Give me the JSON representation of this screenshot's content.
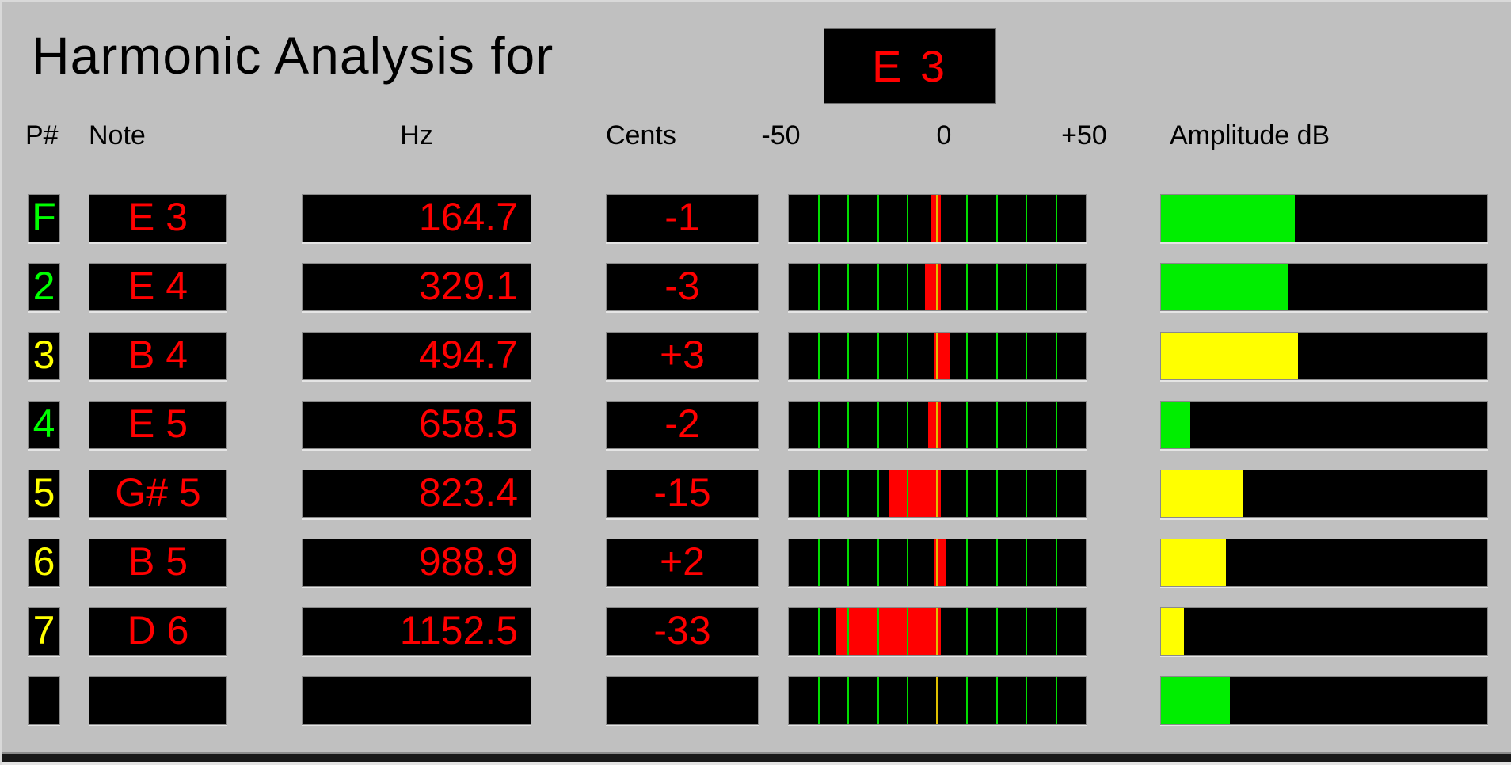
{
  "title": {
    "text": "Harmonic Analysis for",
    "current_note": "E 3"
  },
  "headers": {
    "partial_number": "P#",
    "note": "Note",
    "hz": "Hz",
    "cents": "Cents",
    "scale_min_label": "-50",
    "scale_zero_label": "0",
    "scale_max_label": "+50",
    "amplitude": "Amplitude dB"
  },
  "cents_scale": {
    "min": -50,
    "max": 50,
    "gridline_step": 10
  },
  "colors": {
    "background": "#c0c0c0",
    "box_black": "#000000",
    "value_red": "#ff0000",
    "pnum_green": "#00ff00",
    "pnum_yellow": "#ffff00",
    "gridline_green": "#00dd00",
    "zero_line_yellow": "#e0c000",
    "marker_red": "#ff0000",
    "amp_green": "#00ee00",
    "amp_yellow": "#ffff00"
  },
  "rows": [
    {
      "pnum": "F",
      "pnum_color": "green",
      "note": "E 3",
      "hz": "164.7",
      "cents": "-1",
      "cents_value": -1,
      "amp_pct": 41,
      "amp_color": "green"
    },
    {
      "pnum": "2",
      "pnum_color": "green",
      "note": "E 4",
      "hz": "329.1",
      "cents": "-3",
      "cents_value": -3,
      "amp_pct": 39,
      "amp_color": "green"
    },
    {
      "pnum": "3",
      "pnum_color": "yellow",
      "note": "B 4",
      "hz": "494.7",
      "cents": "+3",
      "cents_value": 3,
      "amp_pct": 42,
      "amp_color": "yellow"
    },
    {
      "pnum": "4",
      "pnum_color": "green",
      "note": "E 5",
      "hz": "658.5",
      "cents": "-2",
      "cents_value": -2,
      "amp_pct": 9,
      "amp_color": "green"
    },
    {
      "pnum": "5",
      "pnum_color": "yellow",
      "note": "G# 5",
      "hz": "823.4",
      "cents": "-15",
      "cents_value": -15,
      "amp_pct": 25,
      "amp_color": "yellow"
    },
    {
      "pnum": "6",
      "pnum_color": "yellow",
      "note": "B 5",
      "hz": "988.9",
      "cents": "+2",
      "cents_value": 2,
      "amp_pct": 20,
      "amp_color": "yellow"
    },
    {
      "pnum": "7",
      "pnum_color": "yellow",
      "note": "D 6",
      "hz": "1152.5",
      "cents": "-33",
      "cents_value": -33,
      "amp_pct": 7,
      "amp_color": "yellow"
    },
    {
      "pnum": "",
      "pnum_color": "green",
      "note": "",
      "hz": "",
      "cents": "",
      "cents_value": null,
      "amp_pct": 21,
      "amp_color": "green"
    }
  ]
}
